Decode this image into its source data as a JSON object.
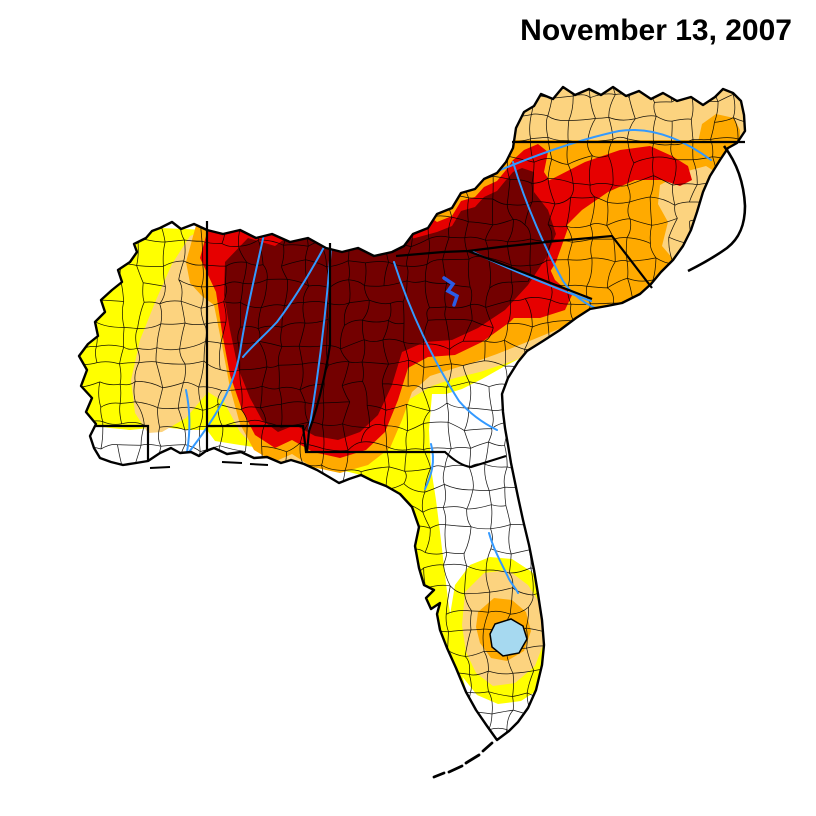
{
  "title": {
    "date": "November 13, 2007"
  },
  "colors": {
    "background": "#FFFFFF",
    "no_drought": "#FFFFFF",
    "d0_abnormally_dry": "#FFFF00",
    "d1_moderate": "#FCD37F",
    "d2_severe": "#FFAA00",
    "d3_extreme": "#E60000",
    "d4_exceptional": "#730000",
    "river": "#3399FF",
    "reservoir": "#2B5CE6",
    "lake_fill": "#A6D9F0",
    "boundary_line": "#000000"
  }
}
